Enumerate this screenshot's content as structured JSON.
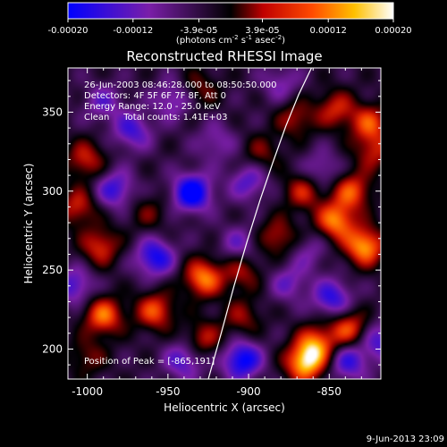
{
  "chart_data": {
    "type": "heatmap",
    "title": "Reconstructed RHESSI Image",
    "xlabel": "Heliocentric X (arcsec)",
    "ylabel": "Heliocentric Y (arcsec)",
    "xlim": [
      -1012,
      -818
    ],
    "ylim": [
      181,
      378
    ],
    "x_ticks": [
      -1000,
      -950,
      -900,
      -850
    ],
    "x_tick_labels": [
      "-1000",
      "-950",
      "-900",
      "-850"
    ],
    "y_ticks": [
      200,
      250,
      300,
      350
    ],
    "y_tick_labels": [
      "200",
      "250",
      "300",
      "350"
    ],
    "colorbar": {
      "range": [
        -0.0002,
        0.0002
      ],
      "ticks": [
        -0.0002,
        -0.00012,
        -3.9e-05,
        3.9e-05,
        0.00012,
        0.0002
      ],
      "tick_labels": [
        "-0.00020",
        "-0.00012",
        "-3.9e-05",
        "3.9e-05",
        "0.00012",
        "0.00020"
      ],
      "colors": [
        "#0000ff",
        "#7a1ea8",
        "#000000",
        "#d81a00",
        "#ff8a00",
        "#ffffff"
      ]
    },
    "annotations": [
      "26-Jun-2003 08:46:28.000 to 08:50:50.000",
      "Detectors: 4F 5F 6F 7F 8F, Att 0",
      "Energy Range: 12.0 - 25.0 keV",
      "Clean     Total counts: 1.41E+03"
    ],
    "peak_label": "Position of Peak = [-865,191]",
    "peak_position": [
      -865,
      191
    ],
    "limb_curve": {
      "x": [
        -925,
        -917,
        -909,
        -901,
        -893,
        -885,
        -877,
        -869,
        -861
      ],
      "y": [
        181,
        210,
        240,
        268,
        294,
        318,
        341,
        361,
        378
      ]
    },
    "blobs": [
      {
        "x": -865,
        "y": 191,
        "v": 1.0
      },
      {
        "x": -858,
        "y": 203,
        "v": 0.75
      },
      {
        "x": -838,
        "y": 213,
        "v": 0.7
      },
      {
        "x": -828,
        "y": 265,
        "v": 0.95
      },
      {
        "x": -846,
        "y": 281,
        "v": 0.85
      },
      {
        "x": -836,
        "y": 300,
        "v": 0.7
      },
      {
        "x": -866,
        "y": 300,
        "v": 0.55
      },
      {
        "x": -882,
        "y": 271,
        "v": 0.5
      },
      {
        "x": -904,
        "y": 249,
        "v": 0.45
      },
      {
        "x": -928,
        "y": 245,
        "v": 0.85
      },
      {
        "x": -958,
        "y": 224,
        "v": 0.7
      },
      {
        "x": -990,
        "y": 221,
        "v": 0.8
      },
      {
        "x": -992,
        "y": 265,
        "v": 0.6
      },
      {
        "x": -1006,
        "y": 290,
        "v": 0.55
      },
      {
        "x": -1001,
        "y": 320,
        "v": 0.55
      },
      {
        "x": -962,
        "y": 286,
        "v": 0.3
      },
      {
        "x": -928,
        "y": 206,
        "v": 0.5
      },
      {
        "x": -1000,
        "y": 195,
        "v": 0.35
      },
      {
        "x": -825,
        "y": 343,
        "v": 0.65
      },
      {
        "x": -846,
        "y": 352,
        "v": 0.55
      },
      {
        "x": -871,
        "y": 346,
        "v": 0.45
      },
      {
        "x": -822,
        "y": 325,
        "v": 0.5
      },
      {
        "x": -892,
        "y": 324,
        "v": 0.35
      },
      {
        "x": -930,
        "y": 365,
        "v": 0.35
      },
      {
        "x": -904,
        "y": 220,
        "v": 0.4
      },
      {
        "x": -935,
        "y": 299,
        "v": -0.95
      },
      {
        "x": -958,
        "y": 258,
        "v": -0.75
      },
      {
        "x": -904,
        "y": 193,
        "v": -0.85
      },
      {
        "x": -940,
        "y": 193,
        "v": -0.55
      },
      {
        "x": -848,
        "y": 232,
        "v": -0.65
      },
      {
        "x": -838,
        "y": 192,
        "v": -0.6
      },
      {
        "x": -818,
        "y": 205,
        "v": -0.55
      },
      {
        "x": -900,
        "y": 306,
        "v": -0.5
      },
      {
        "x": -983,
        "y": 301,
        "v": -0.6
      },
      {
        "x": -906,
        "y": 266,
        "v": -0.4
      },
      {
        "x": -972,
        "y": 338,
        "v": -0.55
      },
      {
        "x": -947,
        "y": 358,
        "v": -0.45
      },
      {
        "x": -1008,
        "y": 240,
        "v": -0.55
      },
      {
        "x": -855,
        "y": 313,
        "v": -0.4
      },
      {
        "x": -875,
        "y": 242,
        "v": -0.4
      },
      {
        "x": -920,
        "y": 331,
        "v": -0.35
      },
      {
        "x": -880,
        "y": 368,
        "v": -0.35
      },
      {
        "x": -990,
        "y": 356,
        "v": -0.4
      },
      {
        "x": -862,
        "y": 262,
        "v": -0.3
      }
    ]
  },
  "footer": {
    "timestamp": "9-Jun-2013 23:09"
  }
}
